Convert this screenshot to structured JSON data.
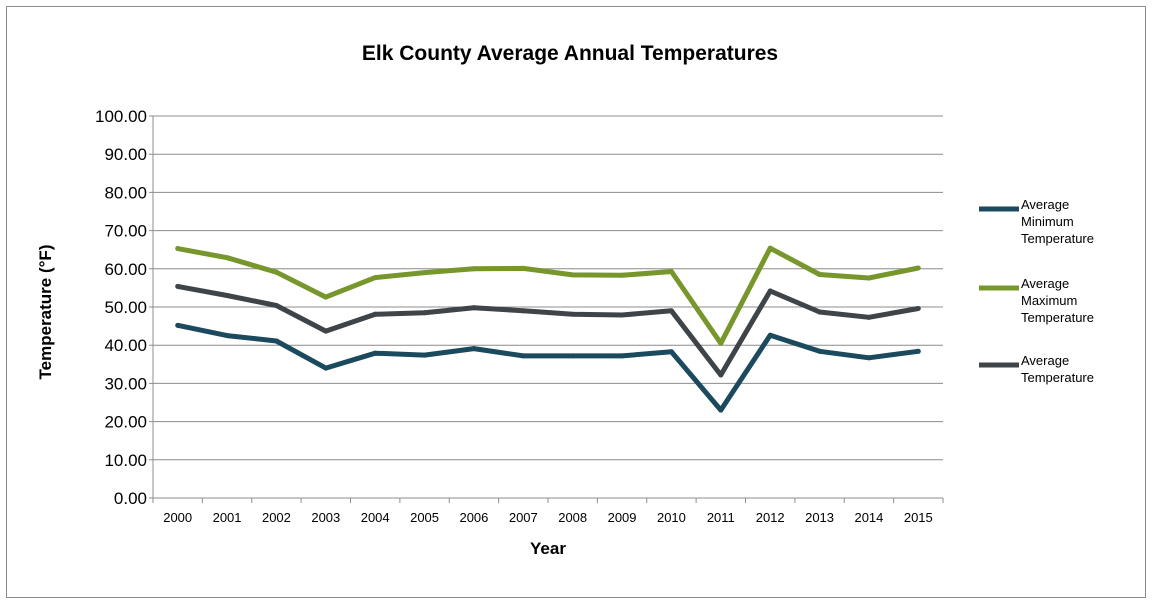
{
  "chart_data": {
    "type": "line",
    "title": "Elk County Average Annual Temperatures",
    "xlabel": "Year",
    "ylabel": "Temperature (°F)",
    "ylim": [
      0,
      100
    ],
    "yticks": [
      "0.00",
      "10.00",
      "20.00",
      "30.00",
      "40.00",
      "50.00",
      "60.00",
      "70.00",
      "80.00",
      "90.00",
      "100.00"
    ],
    "ytick_values": [
      0,
      10,
      20,
      30,
      40,
      50,
      60,
      70,
      80,
      90,
      100
    ],
    "grid": true,
    "legend_position": "right",
    "categories": [
      "2000",
      "2001",
      "2002",
      "2003",
      "2004",
      "2005",
      "2006",
      "2007",
      "2008",
      "2009",
      "2010",
      "2011",
      "2012",
      "2013",
      "2014",
      "2015"
    ],
    "series": [
      {
        "name": "Average Minimum Temperature",
        "legend_lines": [
          "Average",
          "Minimum",
          "Temperature"
        ],
        "color": "#1b4a5e",
        "values": [
          45.2,
          42.5,
          41.1,
          34.0,
          37.9,
          37.4,
          39.1,
          37.2,
          37.2,
          37.2,
          38.3,
          23.0,
          42.6,
          38.4,
          36.7,
          38.4
        ]
      },
      {
        "name": "Average Maximum Temperature",
        "legend_lines": [
          "Average",
          "Maximum",
          "Temperature"
        ],
        "color": "#77962b",
        "values": [
          65.3,
          62.9,
          59.1,
          52.6,
          57.7,
          59.0,
          60.0,
          60.1,
          58.4,
          58.3,
          59.3,
          40.5,
          65.4,
          58.5,
          57.6,
          60.2
        ]
      },
      {
        "name": "Average Temperature",
        "legend_lines": [
          "Average",
          "Temperature"
        ],
        "color": "#3f4449",
        "values": [
          55.4,
          53.0,
          50.4,
          43.7,
          48.1,
          48.5,
          49.8,
          49.0,
          48.1,
          47.9,
          49.0,
          32.2,
          54.2,
          48.7,
          47.3,
          49.6
        ]
      }
    ]
  }
}
